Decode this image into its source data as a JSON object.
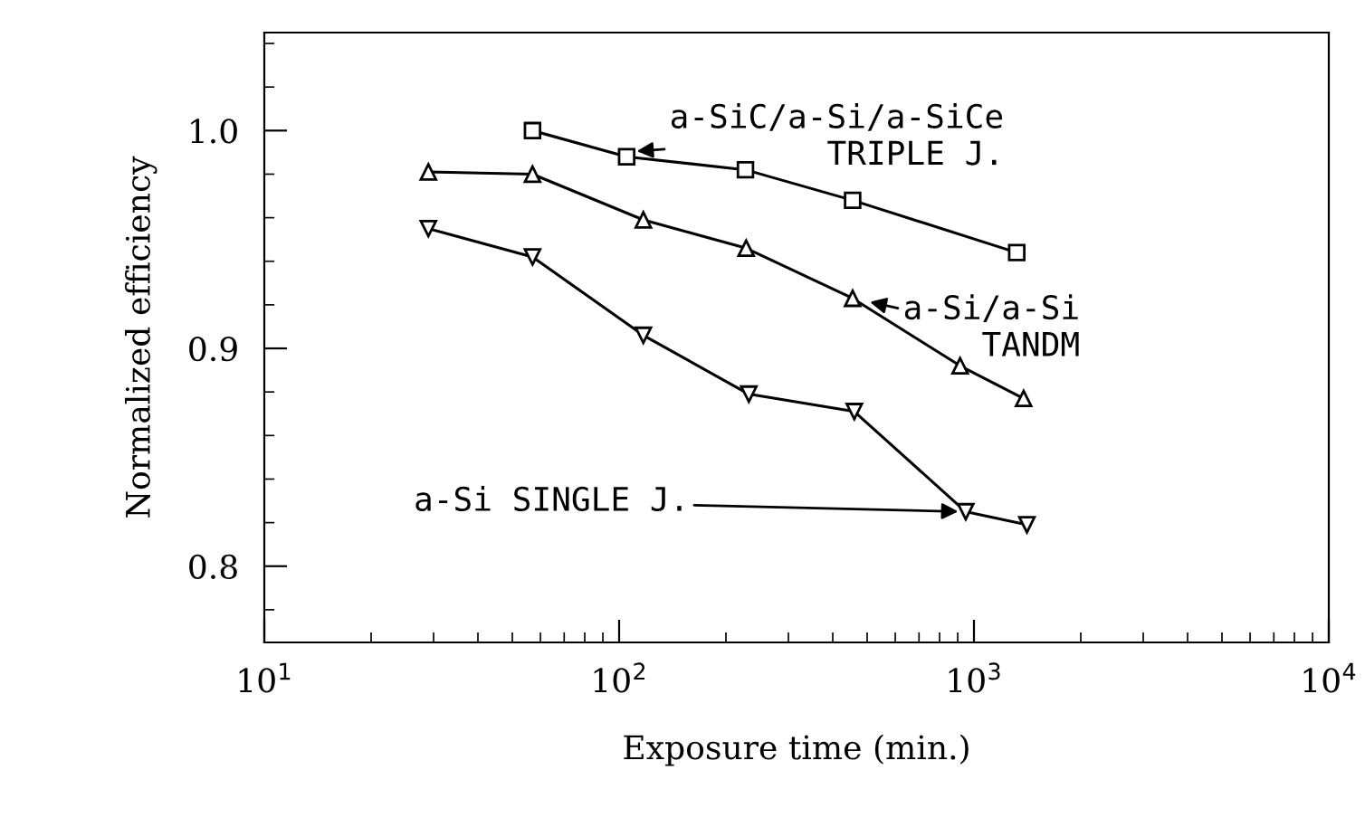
{
  "chart_data": {
    "type": "line",
    "xlabel": "Exposure time (min.)",
    "ylabel": "Normalized efficiency",
    "log": "x",
    "xlim": [
      10,
      10000
    ],
    "ylim": [
      0.765,
      1.045
    ],
    "xticks": [
      {
        "value": 10,
        "label": "10$^{1}$"
      },
      {
        "value": 100,
        "label": "10$^{2}$"
      },
      {
        "value": 1000,
        "label": "10$^{3}$"
      },
      {
        "value": 10000,
        "label": "10$^{4}$"
      }
    ],
    "yticks": [
      0.8,
      0.9,
      {
        "value": 1.0,
        "label": "1.0"
      }
    ],
    "grid": false,
    "legend": false,
    "line_style": "solid",
    "series": [
      {
        "color": "#000000",
        "marker": "square",
        "x": [
          57,
          105,
          227,
          455,
          1320
        ],
        "values": [
          1.0,
          0.988,
          0.982,
          0.968,
          0.944
        ]
      },
      {
        "color": "#000000",
        "marker": "triangle",
        "x": [
          29,
          57,
          117,
          228,
          455,
          914,
          1380
        ],
        "values": [
          0.981,
          0.98,
          0.959,
          0.946,
          0.923,
          0.892,
          0.877
        ]
      },
      {
        "color": "#000000",
        "marker": "triangle_down",
        "x": [
          29,
          57,
          117,
          232,
          460,
          948,
          1410
        ],
        "values": [
          0.955,
          0.942,
          0.906,
          0.879,
          0.871,
          0.825,
          0.819
        ]
      }
    ],
    "annotations": [
      {
        "text": "a-SiC/a-Si/a-SiCe\nTRIPLE J.",
        "x": 100,
        "y": 0.99
      },
      {
        "text": "a-Si/a-Si\nTANDM",
        "x": 455,
        "y": 0.923
      },
      {
        "text": "a-Si SINGLE J.",
        "x": 948,
        "y": 0.825
      }
    ]
  }
}
